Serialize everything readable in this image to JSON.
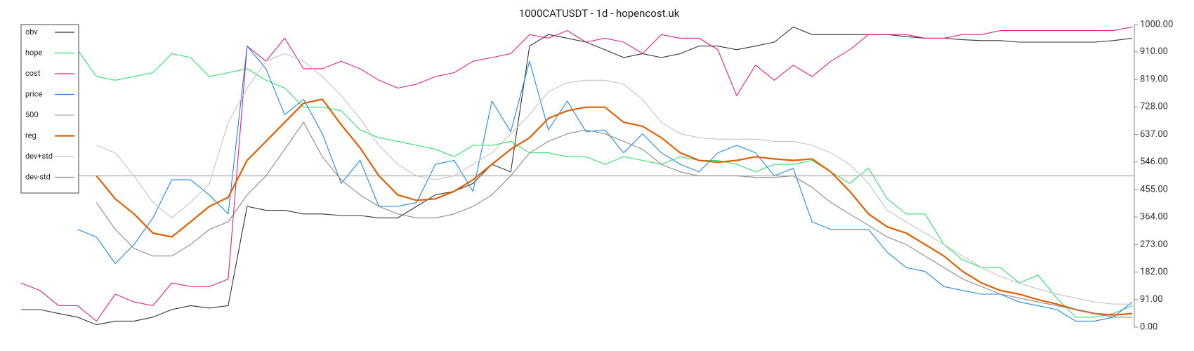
{
  "chart_data": {
    "type": "line",
    "title": "1000CATUSDT - 1d - hopencost.uk",
    "ylim": [
      0,
      1000
    ],
    "yticks": [
      {
        "value": 0,
        "label": "0.00"
      },
      {
        "value": 91,
        "label": "91.00"
      },
      {
        "value": 182,
        "label": "182.00"
      },
      {
        "value": 273,
        "label": "273.00"
      },
      {
        "value": 364,
        "label": "364.00"
      },
      {
        "value": 455,
        "label": "455.00"
      },
      {
        "value": 546,
        "label": "546.00"
      },
      {
        "value": 637,
        "label": "637.00"
      },
      {
        "value": 728,
        "label": "728.00"
      },
      {
        "value": 819,
        "label": "819.00"
      },
      {
        "value": 910,
        "label": "910.00"
      },
      {
        "value": 1000,
        "label": "1000.00"
      }
    ],
    "legend": "upper-left",
    "series": [
      {
        "name": "obv",
        "color": "#333333",
        "values": [
          58,
          58,
          45,
          33,
          8,
          20,
          20,
          33,
          58,
          71,
          63,
          71,
          399,
          386,
          386,
          374,
          374,
          369,
          369,
          361,
          361,
          399,
          437,
          449,
          475,
          538,
          513,
          929,
          967,
          955,
          942,
          917,
          891,
          904,
          891,
          904,
          929,
          929,
          917,
          929,
          942,
          992,
          967,
          967,
          967,
          967,
          967,
          960,
          955,
          955,
          950,
          947,
          947,
          942,
          942,
          942,
          942,
          942,
          947,
          955
        ]
      },
      {
        "name": "hope",
        "color": "#2ee06a",
        "values": [
          null,
          null,
          null,
          917,
          828,
          816,
          828,
          841,
          904,
          891,
          828,
          841,
          854,
          816,
          790,
          727,
          727,
          715,
          652,
          626,
          614,
          601,
          588,
          563,
          601,
          601,
          614,
          576,
          576,
          563,
          563,
          538,
          563,
          551,
          538,
          563,
          551,
          551,
          538,
          513,
          538,
          538,
          551,
          513,
          475,
          525,
          424,
          374,
          374,
          273,
          222,
          197,
          197,
          146,
          172,
          96,
          33,
          33,
          45,
          71
        ]
      },
      {
        "name": "cost",
        "color": "#e0218a",
        "values": [
          146,
          121,
          71,
          71,
          20,
          109,
          83,
          71,
          146,
          134,
          134,
          159,
          929,
          879,
          955,
          854,
          854,
          879,
          854,
          816,
          790,
          803,
          828,
          841,
          879,
          891,
          904,
          967,
          955,
          980,
          942,
          955,
          942,
          904,
          967,
          955,
          955,
          917,
          765,
          866,
          816,
          866,
          828,
          879,
          917,
          967,
          967,
          967,
          955,
          955,
          967,
          967,
          980,
          980,
          980,
          980,
          980,
          980,
          980,
          992
        ]
      },
      {
        "name": "price",
        "color": "#1e88e5",
        "values": [
          null,
          null,
          null,
          323,
          298,
          210,
          273,
          361,
          487,
          487,
          437,
          374,
          929,
          854,
          702,
          753,
          639,
          475,
          551,
          399,
          399,
          412,
          538,
          551,
          449,
          747,
          646,
          879,
          652,
          747,
          646,
          652,
          576,
          639,
          576,
          538,
          513,
          576,
          601,
          576,
          500,
          525,
          348,
          323,
          323,
          323,
          247,
          197,
          184,
          134,
          121,
          109,
          109,
          83,
          71,
          58,
          20,
          20,
          33,
          83
        ]
      },
      {
        "name": "500",
        "color": "#aaaaaa",
        "level": 500
      },
      {
        "name": "reg",
        "color": "#e06000",
        "width": 2.2,
        "values": [
          null,
          null,
          null,
          null,
          500,
          424,
          374,
          311,
          298,
          348,
          399,
          429,
          551,
          614,
          677,
          740,
          753,
          669,
          593,
          500,
          437,
          419,
          424,
          449,
          487,
          538,
          588,
          626,
          690,
          715,
          727,
          727,
          677,
          664,
          626,
          576,
          551,
          545,
          551,
          563,
          556,
          551,
          556,
          513,
          449,
          374,
          331,
          311,
          273,
          235,
          184,
          146,
          121,
          109,
          91,
          76,
          58,
          45,
          40,
          45
        ]
      },
      {
        "name": "dev+std",
        "color": "#c4c4c4",
        "values": [
          null,
          null,
          null,
          null,
          601,
          576,
          500,
          412,
          361,
          412,
          475,
          677,
          790,
          879,
          904,
          879,
          828,
          765,
          689,
          601,
          538,
          500,
          487,
          500,
          538,
          576,
          639,
          702,
          778,
          808,
          816,
          816,
          803,
          753,
          677,
          639,
          626,
          621,
          621,
          621,
          614,
          614,
          601,
          576,
          538,
          475,
          386,
          348,
          311,
          273,
          235,
          197,
          167,
          146,
          126,
          109,
          96,
          83,
          76,
          76
        ]
      },
      {
        "name": "dev-std",
        "color": "#8a8a8a",
        "values": [
          null,
          null,
          null,
          null,
          412,
          323,
          260,
          235,
          235,
          273,
          323,
          348,
          437,
          500,
          588,
          677,
          563,
          487,
          437,
          399,
          374,
          361,
          361,
          374,
          399,
          437,
          500,
          576,
          614,
          639,
          652,
          639,
          614,
          588,
          538,
          513,
          500,
          500,
          500,
          495,
          495,
          500,
          462,
          412,
          374,
          336,
          298,
          273,
          235,
          197,
          159,
          134,
          109,
          96,
          83,
          71,
          58,
          45,
          33,
          33
        ]
      }
    ]
  }
}
